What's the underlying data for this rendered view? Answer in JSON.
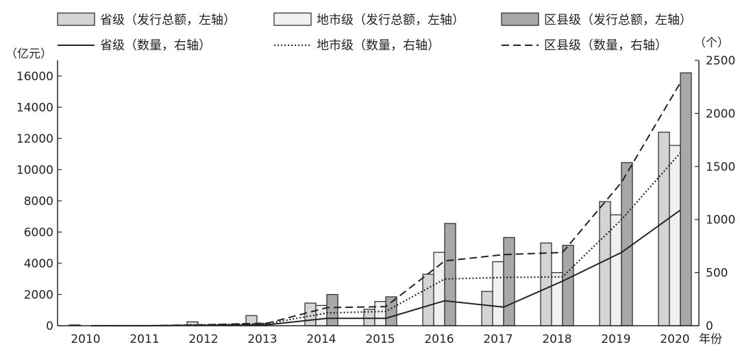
{
  "chart_data": {
    "type": "bar",
    "categories": [
      "2010",
      "2011",
      "2012",
      "2013",
      "2014",
      "2015",
      "2016",
      "2017",
      "2018",
      "2019",
      "2020"
    ],
    "x_unit": "年份",
    "y_left": {
      "unit": "（亿元）",
      "ylim": [
        0,
        17000
      ],
      "ticks": [
        0,
        2000,
        4000,
        6000,
        8000,
        10000,
        12000,
        14000,
        16000
      ]
    },
    "y_right": {
      "unit": "（个）",
      "ylim": [
        0,
        2500
      ],
      "ticks": [
        0,
        500,
        1000,
        1500,
        2000,
        2500
      ]
    },
    "bar_series": [
      {
        "name": "省级（发行总额，左轴）",
        "color": "#d4d4d4",
        "values": [
          50,
          0,
          250,
          650,
          1450,
          1050,
          3300,
          2200,
          5300,
          7950,
          12400
        ]
      },
      {
        "name": "地市级（发行总额，左轴）",
        "color": "#f0f0f0",
        "values": [
          0,
          0,
          0,
          150,
          1300,
          1550,
          4700,
          4100,
          3400,
          7100,
          11550
        ]
      },
      {
        "name": "区县级（发行总额，左轴）",
        "color": "#a8a8a8",
        "values": [
          0,
          0,
          0,
          0,
          2000,
          1850,
          6550,
          5650,
          5150,
          10450,
          16200
        ]
      }
    ],
    "line_series": [
      {
        "name": "省级（数量，右轴）",
        "style": "solid",
        "values": [
          0,
          0,
          5,
          10,
          70,
          70,
          235,
          175,
          420,
          690,
          1090
        ]
      },
      {
        "name": "地市级（数量，右轴）",
        "style": "dotted",
        "values": [
          0,
          0,
          10,
          20,
          120,
          135,
          440,
          455,
          460,
          1000,
          1630
        ]
      },
      {
        "name": "区县级（数量，右轴）",
        "style": "dashed",
        "values": [
          0,
          0,
          10,
          25,
          170,
          180,
          610,
          670,
          690,
          1350,
          2290
        ]
      }
    ],
    "legend_position": "top"
  }
}
